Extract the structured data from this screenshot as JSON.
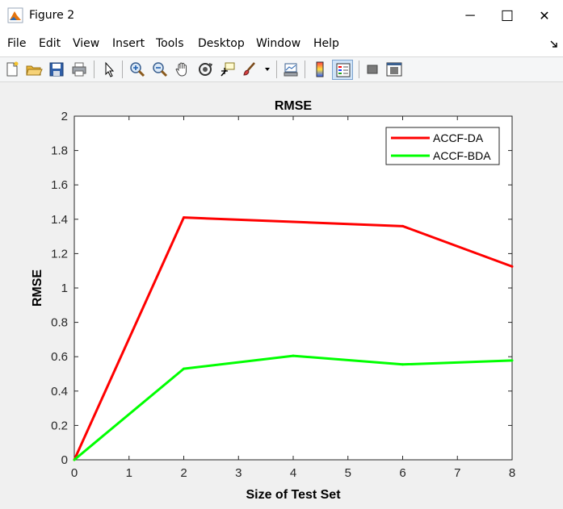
{
  "window": {
    "title": "Figure 2",
    "minimize_label": "─",
    "maximize_label": "☐",
    "close_label": "✕"
  },
  "menu": {
    "items": [
      "File",
      "Edit",
      "View",
      "Insert",
      "Tools",
      "Desktop",
      "Window",
      "Help"
    ]
  },
  "toolbar": {
    "buttons": [
      "new-figure",
      "open-file",
      "save",
      "print",
      "edit-plot",
      "zoom-in",
      "zoom-out",
      "pan",
      "rotate-3d",
      "data-cursor",
      "brush",
      "link-plot",
      "colorbar",
      "legend",
      "hide-plot-tools",
      "show-plot-tools"
    ]
  },
  "chart_data": {
    "type": "line",
    "title": "RMSE",
    "xlabel": "Size of Test Set",
    "ylabel": "RMSE",
    "xlim": [
      0,
      8
    ],
    "ylim": [
      0,
      2
    ],
    "xticks": [
      "0",
      "1",
      "2",
      "3",
      "4",
      "5",
      "6",
      "7",
      "8"
    ],
    "yticks": [
      "0",
      "0.2",
      "0.4",
      "0.6",
      "0.8",
      "1",
      "1.2",
      "1.4",
      "1.6",
      "1.8",
      "2"
    ],
    "grid": false,
    "legend_position": "top-right",
    "series": [
      {
        "name": "ACCF-DA",
        "color": "#ff0000",
        "x": [
          0,
          2,
          4,
          6,
          8
        ],
        "y": [
          0,
          1.41,
          1.385,
          1.36,
          1.125
        ]
      },
      {
        "name": "ACCF-BDA",
        "color": "#00ff00",
        "x": [
          0,
          2,
          4,
          6,
          8
        ],
        "y": [
          0,
          0.53,
          0.605,
          0.555,
          0.578
        ]
      }
    ]
  }
}
